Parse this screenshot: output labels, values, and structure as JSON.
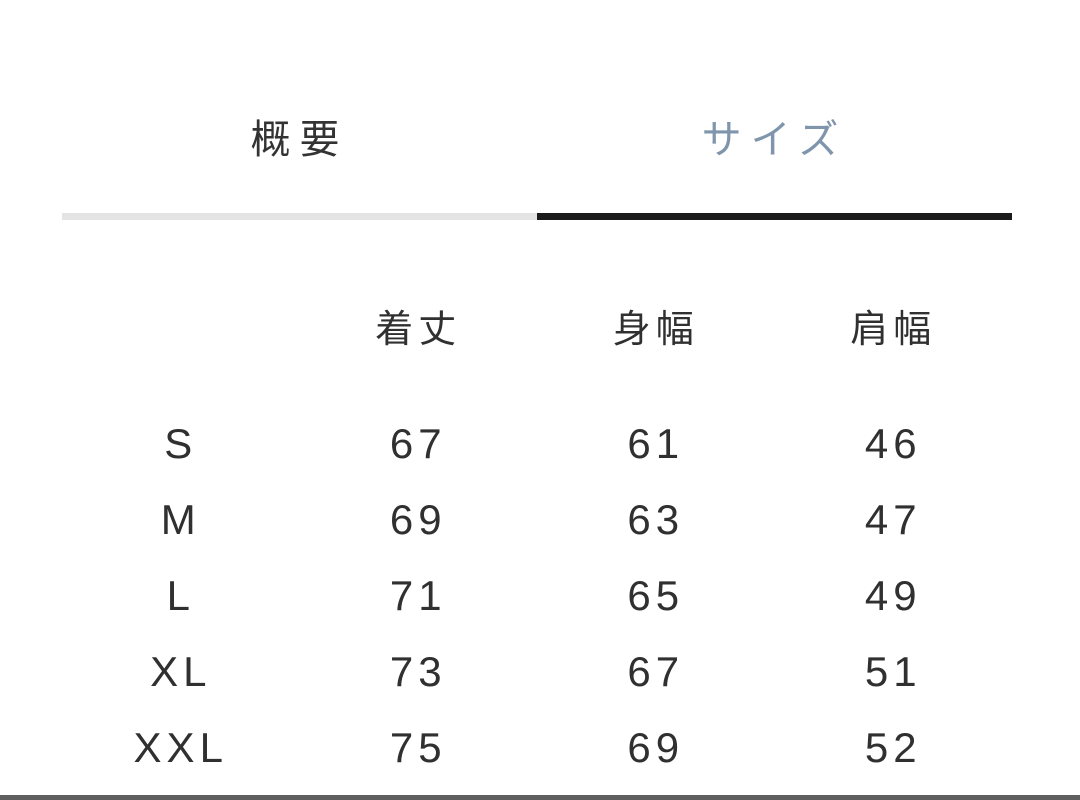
{
  "tabs": {
    "overview": {
      "label": "概要",
      "active": false
    },
    "size": {
      "label": "サイズ",
      "active": true
    }
  },
  "colors": {
    "background": "#ffffff",
    "active_tab_text": "#7e95ab",
    "inactive_tab_text": "#333333",
    "active_underline": "#1b1b1b",
    "inactive_underline": "#e4e4e4",
    "table_text": "#303030",
    "bottom_divider": "#5f5f5f"
  },
  "size_table": {
    "columns": [
      "着丈",
      "身幅",
      "肩幅"
    ],
    "rows": [
      {
        "size": "S",
        "values": [
          "67",
          "61",
          "46"
        ]
      },
      {
        "size": "M",
        "values": [
          "69",
          "63",
          "47"
        ]
      },
      {
        "size": "L",
        "values": [
          "71",
          "65",
          "49"
        ]
      },
      {
        "size": "XL",
        "values": [
          "73",
          "67",
          "51"
        ]
      },
      {
        "size": "XXL",
        "values": [
          "75",
          "69",
          "52"
        ]
      }
    ]
  }
}
